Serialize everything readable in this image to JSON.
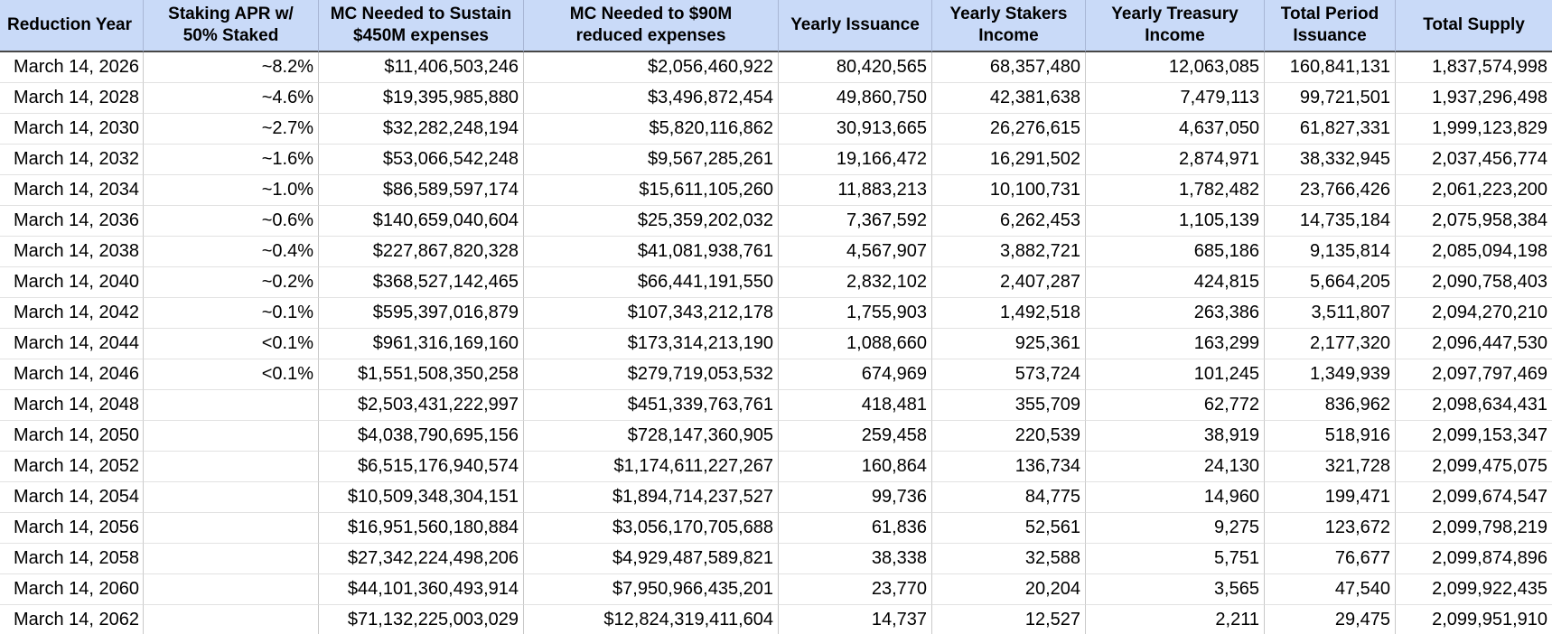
{
  "colors": {
    "header_background": "#c9daf8",
    "header_divider": "#a8b6d5",
    "header_bottom_border": "#474747",
    "grid_vertical_line": "#c9c9c9",
    "grid_horizontal_line": "#e2e2e2",
    "text": "#000000",
    "row_background": "#ffffff"
  },
  "chart_data": {
    "type": "table",
    "title": "",
    "columns": [
      "Reduction Year",
      "Staking APR w/\n50% Staked",
      "MC Needed to Sustain\n$450M expenses",
      "MC Needed to $90M\nreduced expenses",
      "Yearly Issuance",
      "Yearly Stakers\nIncome",
      "Yearly Treasury\nIncome",
      "Total Period\nIssuance",
      "Total Supply"
    ],
    "column_keys": [
      "reduction-year",
      "staking-apr",
      "mc-sustain-450m",
      "mc-reduced-90m",
      "yearly-issuance",
      "yearly-stakers-income",
      "yearly-treasury-income",
      "total-period-issuance",
      "total-supply"
    ],
    "rows": [
      [
        "March 14, 2026",
        "~8.2%",
        "$11,406,503,246",
        "$2,056,460,922",
        "80,420,565",
        "68,357,480",
        "12,063,085",
        "160,841,131",
        "1,837,574,998"
      ],
      [
        "March 14, 2028",
        "~4.6%",
        "$19,395,985,880",
        "$3,496,872,454",
        "49,860,750",
        "42,381,638",
        "7,479,113",
        "99,721,501",
        "1,937,296,498"
      ],
      [
        "March 14, 2030",
        "~2.7%",
        "$32,282,248,194",
        "$5,820,116,862",
        "30,913,665",
        "26,276,615",
        "4,637,050",
        "61,827,331",
        "1,999,123,829"
      ],
      [
        "March 14, 2032",
        "~1.6%",
        "$53,066,542,248",
        "$9,567,285,261",
        "19,166,472",
        "16,291,502",
        "2,874,971",
        "38,332,945",
        "2,037,456,774"
      ],
      [
        "March 14, 2034",
        "~1.0%",
        "$86,589,597,174",
        "$15,611,105,260",
        "11,883,213",
        "10,100,731",
        "1,782,482",
        "23,766,426",
        "2,061,223,200"
      ],
      [
        "March 14, 2036",
        "~0.6%",
        "$140,659,040,604",
        "$25,359,202,032",
        "7,367,592",
        "6,262,453",
        "1,105,139",
        "14,735,184",
        "2,075,958,384"
      ],
      [
        "March 14, 2038",
        "~0.4%",
        "$227,867,820,328",
        "$41,081,938,761",
        "4,567,907",
        "3,882,721",
        "685,186",
        "9,135,814",
        "2,085,094,198"
      ],
      [
        "March 14, 2040",
        "~0.2%",
        "$368,527,142,465",
        "$66,441,191,550",
        "2,832,102",
        "2,407,287",
        "424,815",
        "5,664,205",
        "2,090,758,403"
      ],
      [
        "March 14, 2042",
        "~0.1%",
        "$595,397,016,879",
        "$107,343,212,178",
        "1,755,903",
        "1,492,518",
        "263,386",
        "3,511,807",
        "2,094,270,210"
      ],
      [
        "March 14, 2044",
        "<0.1%",
        "$961,316,169,160",
        "$173,314,213,190",
        "1,088,660",
        "925,361",
        "163,299",
        "2,177,320",
        "2,096,447,530"
      ],
      [
        "March 14, 2046",
        "<0.1%",
        "$1,551,508,350,258",
        "$279,719,053,532",
        "674,969",
        "573,724",
        "101,245",
        "1,349,939",
        "2,097,797,469"
      ],
      [
        "March 14, 2048",
        "",
        "$2,503,431,222,997",
        "$451,339,763,761",
        "418,481",
        "355,709",
        "62,772",
        "836,962",
        "2,098,634,431"
      ],
      [
        "March 14, 2050",
        "",
        "$4,038,790,695,156",
        "$728,147,360,905",
        "259,458",
        "220,539",
        "38,919",
        "518,916",
        "2,099,153,347"
      ],
      [
        "March 14, 2052",
        "",
        "$6,515,176,940,574",
        "$1,174,611,227,267",
        "160,864",
        "136,734",
        "24,130",
        "321,728",
        "2,099,475,075"
      ],
      [
        "March 14, 2054",
        "",
        "$10,509,348,304,151",
        "$1,894,714,237,527",
        "99,736",
        "84,775",
        "14,960",
        "199,471",
        "2,099,674,547"
      ],
      [
        "March 14, 2056",
        "",
        "$16,951,560,180,884",
        "$3,056,170,705,688",
        "61,836",
        "52,561",
        "9,275",
        "123,672",
        "2,099,798,219"
      ],
      [
        "March 14, 2058",
        "",
        "$27,342,224,498,206",
        "$4,929,487,589,821",
        "38,338",
        "32,588",
        "5,751",
        "76,677",
        "2,099,874,896"
      ],
      [
        "March 14, 2060",
        "",
        "$44,101,360,493,914",
        "$7,950,966,435,201",
        "23,770",
        "20,204",
        "3,565",
        "47,540",
        "2,099,922,435"
      ],
      [
        "March 14, 2062",
        "",
        "$71,132,225,003,029",
        "$12,824,319,411,604",
        "14,737",
        "12,527",
        "2,211",
        "29,475",
        "2,099,951,910"
      ]
    ]
  }
}
